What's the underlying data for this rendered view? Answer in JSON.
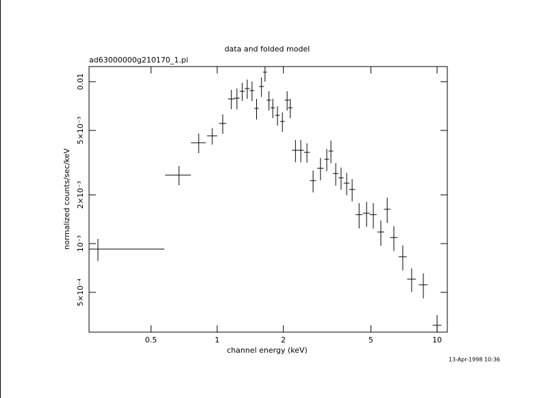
{
  "chart_data": {
    "type": "errorbar",
    "title": "data and folded model",
    "subtitle": "ad63000000g210170_1.pi",
    "x_label": "channel energy (keV)",
    "y_label": "normalized counts/sec/keV",
    "timestamp": "13-Apr-1998 10:36",
    "xscale": "log",
    "yscale": "log",
    "xlim": [
      0.2615,
      11.13
    ],
    "ylim": [
      0.000284,
      0.0124
    ],
    "xticks": [
      0.5,
      1,
      2,
      5,
      10
    ],
    "yticks": [
      {
        "value": 0.01,
        "label": "0.01"
      },
      {
        "value": 0.005,
        "label": "5×10⁻³"
      },
      {
        "value": 0.002,
        "label": "2×10⁻³"
      },
      {
        "value": 0.001,
        "label": "10⁻³"
      },
      {
        "value": 0.0005,
        "label": "5×10⁻⁴"
      }
    ],
    "color": "#000000",
    "series": [
      {
        "x": [
          0.287,
          0.67,
          0.824,
          0.95,
          1.06,
          1.16,
          1.23,
          1.3,
          1.37,
          1.44,
          1.51,
          1.59,
          1.65,
          1.72,
          1.79,
          1.88,
          1.98,
          2.08,
          2.15,
          2.27,
          2.4,
          2.56,
          2.73,
          2.95,
          3.15,
          3.29,
          3.46,
          3.66,
          3.88,
          4.11,
          4.42,
          4.78,
          5.13,
          5.55,
          5.93,
          6.36,
          6.98,
          7.66,
          8.66,
          10.0
        ],
        "xerr": [
          0.288,
          0.09,
          0.064,
          0.05,
          0.04,
          0.04,
          0.035,
          0.035,
          0.035,
          0.035,
          0.035,
          0.04,
          0.035,
          0.04,
          0.04,
          0.045,
          0.045,
          0.05,
          0.05,
          0.08,
          0.08,
          0.08,
          0.09,
          0.1,
          0.08,
          0.08,
          0.1,
          0.1,
          0.12,
          0.13,
          0.16,
          0.18,
          0.18,
          0.2,
          0.2,
          0.25,
          0.3,
          0.35,
          0.4,
          0.45
        ],
        "y": [
          0.000925,
          0.00265,
          0.0042,
          0.00463,
          0.00552,
          0.00783,
          0.00791,
          0.00872,
          0.00907,
          0.00881,
          0.00684,
          0.00934,
          0.01146,
          0.00769,
          0.0069,
          0.0062,
          0.00568,
          0.00769,
          0.0069,
          0.00377,
          0.00377,
          0.00366,
          0.00245,
          0.00292,
          0.00332,
          0.00373,
          0.00271,
          0.00255,
          0.00236,
          0.00216,
          0.00151,
          0.00154,
          0.00151,
          0.00118,
          0.00163,
          0.00109,
          0.00083,
          0.000603,
          0.000557,
          0.000313
        ],
        "yerr": [
          0.000145,
          0.00036,
          0.00058,
          0.00054,
          0.00076,
          0.00107,
          0.00116,
          0.00111,
          0.00124,
          0.00121,
          0.001,
          0.00128,
          0.00146,
          0.00105,
          0.00095,
          0.00085,
          0.00078,
          0.00105,
          0.00095,
          0.00059,
          0.00059,
          0.0005,
          0.00038,
          0.00046,
          0.00052,
          0.00059,
          0.00043,
          0.0004,
          0.00037,
          0.00034,
          0.00027,
          0.00027,
          0.00027,
          0.00021,
          0.00029,
          0.00019,
          0.000146,
          0.0001,
          9.8e-05,
          4.9e-05
        ]
      }
    ]
  }
}
